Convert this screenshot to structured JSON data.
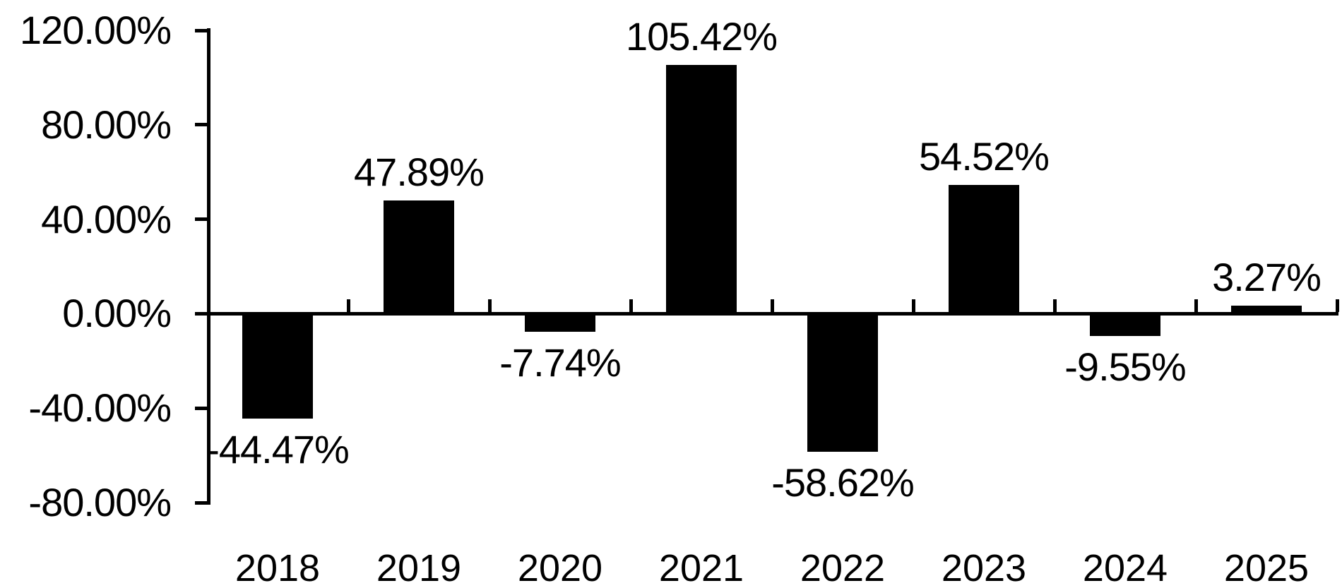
{
  "chart_data": {
    "type": "bar",
    "title": "",
    "xlabel": "",
    "ylabel": "",
    "categories": [
      "2018",
      "2019",
      "2020",
      "2021",
      "2022",
      "2023",
      "2024",
      "2025"
    ],
    "values": [
      -44.47,
      47.89,
      -7.74,
      105.42,
      -58.62,
      54.52,
      -9.55,
      3.27
    ],
    "data_labels": [
      "-44.47%",
      "47.89%",
      "-7.74%",
      "105.42%",
      "-58.62%",
      "54.52%",
      "-9.55%",
      "3.27%"
    ],
    "y_tick_values": [
      120,
      80,
      40,
      0,
      -40,
      -80
    ],
    "y_tick_labels": [
      "120.00%",
      "80.00%",
      "40.00%",
      "0.00%",
      "-40.00%",
      "-80.00%"
    ],
    "ylim": [
      -80,
      120
    ],
    "grid": false,
    "legend": false,
    "bar_color": "#000000",
    "axis_color": "#000000",
    "text_color": "#000000",
    "background_color": "#ffffff"
  }
}
